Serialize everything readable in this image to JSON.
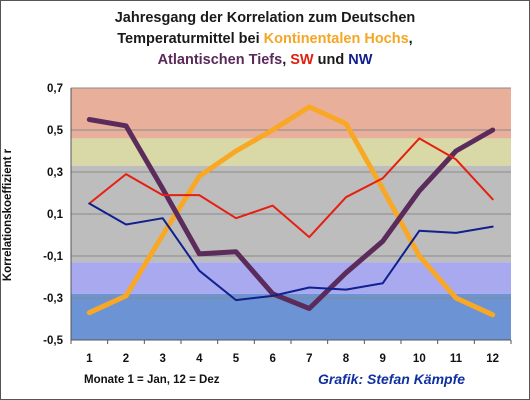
{
  "chart_data": {
    "type": "line",
    "title_lines": [
      [
        {
          "text": "Jahresgang der Korrelation zum Deutschen",
          "color": "#1a1a1a"
        }
      ],
      [
        {
          "text": "Temperaturmittel  bei ",
          "color": "#1a1a1a"
        },
        {
          "text": "Kontinentalen Hochs",
          "color": "#f5a623"
        },
        {
          "text": ",",
          "color": "#1a1a1a"
        }
      ],
      [
        {
          "text": "Atlantischen Tiefs",
          "color": "#5a2a5a"
        },
        {
          "text": ", ",
          "color": "#1a1a1a"
        },
        {
          "text": "SW",
          "color": "#e02010"
        },
        {
          "text": " und ",
          "color": "#1a1a1a"
        },
        {
          "text": "NW",
          "color": "#10208f"
        }
      ]
    ],
    "ylabel": "Korrelationskoeffizient r",
    "xlabel": "Monate 1 = Jan, 12 = Dez",
    "credit": "Grafik: Stefan Kämpfe",
    "x": [
      1,
      2,
      3,
      4,
      5,
      6,
      7,
      8,
      9,
      10,
      11,
      12
    ],
    "ylim": [
      -0.5,
      0.7
    ],
    "yticks": [
      -0.5,
      -0.3,
      -0.1,
      0.1,
      0.3,
      0.5,
      0.7
    ],
    "ytick_labels": [
      "-0,5",
      "-0,3",
      "-0,1",
      "0,1",
      "0,3",
      "0,5",
      "0,7"
    ],
    "grid": true,
    "bands": [
      {
        "from": 0.46,
        "to": 0.7,
        "color": "#e8b09a"
      },
      {
        "from": 0.33,
        "to": 0.46,
        "color": "#d9d9a8"
      },
      {
        "from": -0.13,
        "to": 0.33,
        "color": "#bdbdbd"
      },
      {
        "from": -0.28,
        "to": -0.13,
        "color": "#a9a9f0"
      },
      {
        "from": -0.5,
        "to": -0.28,
        "color": "#6c94d4"
      }
    ],
    "series": [
      {
        "key": "kontinental",
        "color": "#f9a825",
        "width": 5,
        "values": [
          -0.37,
          -0.29,
          0.0,
          0.28,
          0.4,
          0.5,
          0.61,
          0.53,
          0.22,
          -0.1,
          -0.3,
          -0.38
        ]
      },
      {
        "key": "atlantisch",
        "color": "#5b2c5b",
        "width": 5,
        "values": [
          0.55,
          0.52,
          0.22,
          -0.09,
          -0.08,
          -0.28,
          -0.35,
          -0.18,
          -0.03,
          0.21,
          0.4,
          0.5
        ]
      },
      {
        "key": "sw",
        "color": "#e52010",
        "width": 2,
        "values": [
          0.15,
          0.29,
          0.19,
          0.19,
          0.08,
          0.14,
          -0.01,
          0.18,
          0.27,
          0.46,
          0.36,
          0.17
        ]
      },
      {
        "key": "nw",
        "color": "#10208f",
        "width": 2,
        "values": [
          0.15,
          0.05,
          0.08,
          -0.17,
          -0.31,
          -0.29,
          -0.25,
          -0.26,
          -0.23,
          0.02,
          0.01,
          0.04
        ]
      }
    ]
  }
}
